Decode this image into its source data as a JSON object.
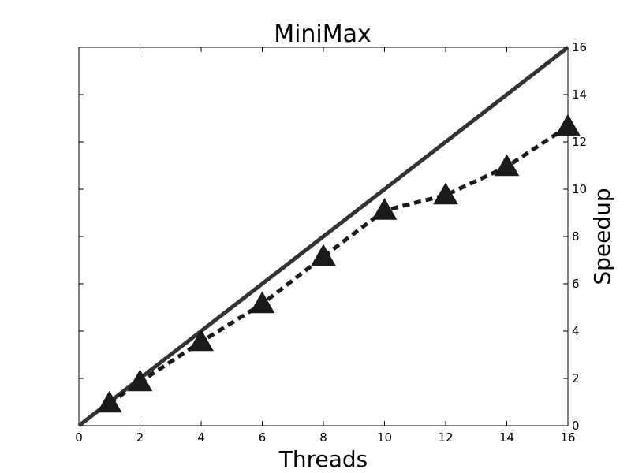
{
  "chart_data": {
    "type": "line",
    "title": "MiniMax",
    "xlabel": "Threads",
    "ylabel": "Speedup",
    "xlim": [
      0,
      16
    ],
    "ylim": [
      0,
      16
    ],
    "x_ticks": [
      "0",
      "2",
      "4",
      "6",
      "8",
      "10",
      "12",
      "14",
      "16"
    ],
    "y_ticks": [
      "0",
      "2",
      "4",
      "6",
      "8",
      "10",
      "12",
      "14",
      "16"
    ],
    "y_axis_side": "right",
    "grid": false,
    "legend": false,
    "series": [
      {
        "style": "solid",
        "color": "#333333",
        "x": [
          0,
          16
        ],
        "y": [
          0,
          16
        ]
      },
      {
        "style": "dashed",
        "marker": "triangle",
        "color": "#1a1a1a",
        "x": [
          1,
          2,
          4,
          6,
          8,
          10,
          12,
          14,
          16
        ],
        "y": [
          0.95,
          1.85,
          3.55,
          5.15,
          7.15,
          9.1,
          9.75,
          10.95,
          12.65
        ]
      }
    ]
  }
}
